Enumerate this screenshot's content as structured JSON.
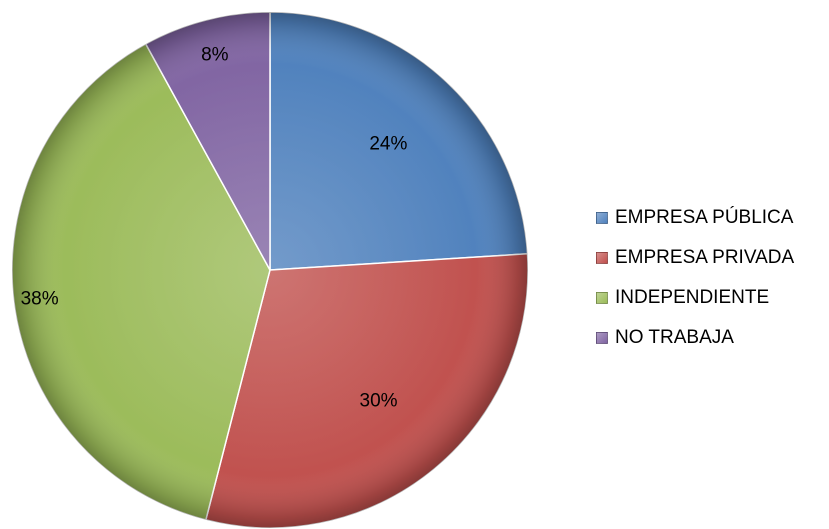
{
  "chart_data": {
    "type": "pie",
    "title": "",
    "categories": [
      "EMPRESA PÚBLICA",
      "EMPRESA PRIVADA",
      "INDEPENDIENTE",
      "NO TRABAJA"
    ],
    "values": [
      24,
      30,
      38,
      8
    ],
    "labels": [
      "24%",
      "30%",
      "38%",
      "8%"
    ],
    "colors": [
      "#4F81BD",
      "#C0504D",
      "#9BBB59",
      "#8064A2"
    ],
    "start": "top",
    "direction": "clockwise",
    "legend": "right",
    "style": "3d-bevel"
  }
}
